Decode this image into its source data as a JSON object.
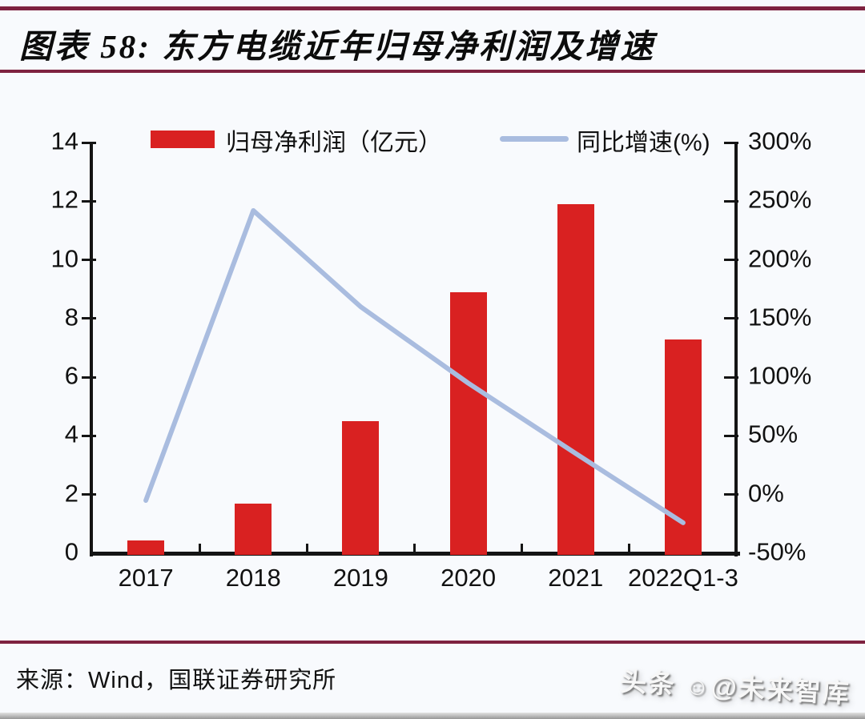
{
  "title": "图表 58:  东方电缆近年归母净利润及增速",
  "legend": {
    "bar_label": "归母净利润（亿元）",
    "line_label": "同比增速(%)"
  },
  "chart_data": {
    "type": "bar+line combo",
    "categories": [
      "2017",
      "2018",
      "2019",
      "2020",
      "2021",
      "2022Q1-3"
    ],
    "series": [
      {
        "name": "归母净利润（亿元）",
        "type": "bar",
        "axis": "left",
        "color": "#d92121",
        "values": [
          0.45,
          1.7,
          4.5,
          8.9,
          11.9,
          7.3
        ]
      },
      {
        "name": "同比增速(%)",
        "type": "line",
        "axis": "right",
        "color": "#a9bcdf",
        "values": [
          -5,
          242,
          160,
          95,
          35,
          -24
        ]
      }
    ],
    "left_axis": {
      "min": 0,
      "max": 14,
      "step": 2,
      "tick_labels": [
        "0",
        "2",
        "4",
        "6",
        "8",
        "10",
        "12",
        "14"
      ]
    },
    "right_axis": {
      "min": -50,
      "max": 300,
      "step": 50,
      "tick_labels": [
        "-50%",
        "0%",
        "50%",
        "100%",
        "150%",
        "200%",
        "250%",
        "300%"
      ]
    },
    "grid": false,
    "legend_position": "top"
  },
  "colors": {
    "bar": "#d92121",
    "line": "#a9bcdf",
    "rule": "#7e2240"
  },
  "source": "来源：Wind，国联证券研究所",
  "watermark": {
    "part1": "头条",
    "icon": "☺",
    "part2": "@未来智库"
  }
}
